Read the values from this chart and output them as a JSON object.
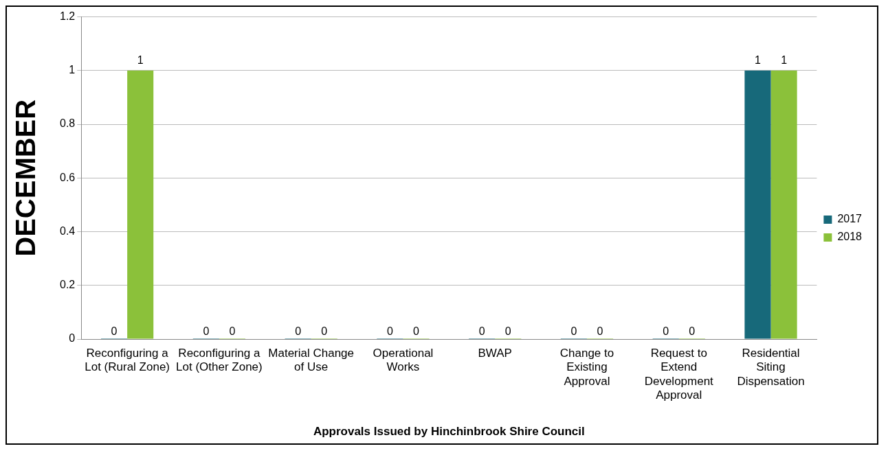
{
  "chart_data": {
    "type": "bar",
    "xlabel": "Approvals Issued by Hinchinbrook Shire Council",
    "ylabel": "DECEMBER",
    "categories": [
      "Reconfiguring a Lot (Rural Zone)",
      "Reconfiguring a Lot (Other Zone)",
      "Material Change of Use",
      "Operational Works",
      "BWAP",
      "Change to Existing Approval",
      "Request to Extend Development Approval",
      "Residential Siting Dispensation"
    ],
    "series": [
      {
        "name": "2017",
        "color": "#17697a",
        "values": [
          0,
          0,
          0,
          0,
          0,
          0,
          0,
          1
        ]
      },
      {
        "name": "2018",
        "color": "#8bc13a",
        "values": [
          1,
          0,
          0,
          0,
          0,
          0,
          0,
          1
        ]
      }
    ],
    "ylim": [
      0,
      1.2
    ],
    "yticks": [
      0,
      0.2,
      0.4,
      0.6,
      0.8,
      1,
      1.2
    ],
    "grid": "y",
    "legend": "right",
    "data_labels": true
  }
}
